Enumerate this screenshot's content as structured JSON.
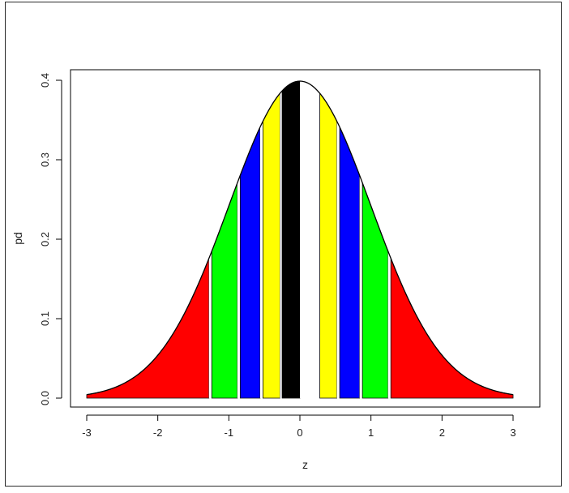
{
  "chart_data": {
    "type": "area",
    "title": "",
    "xlabel": "z",
    "ylabel": "pd",
    "xlim": [
      -3,
      3
    ],
    "ylim": [
      0,
      0.4
    ],
    "x_ticks": [
      -3,
      -2,
      -1,
      0,
      1,
      2,
      3
    ],
    "x_tick_labels": [
      "-3",
      "-2",
      "-1",
      "0",
      "1",
      "2",
      "3"
    ],
    "y_ticks": [
      0.0,
      0.1,
      0.2,
      0.3,
      0.4
    ],
    "y_tick_labels": [
      "0.0",
      "0.1",
      "0.2",
      "0.3",
      "0.4"
    ],
    "curve": "standard normal density",
    "bands": [
      {
        "from": -3.0,
        "to": -1.28,
        "color": "#ff0000"
      },
      {
        "from": -1.28,
        "to": -1.24,
        "color": "#ffffff"
      },
      {
        "from": -1.24,
        "to": -0.88,
        "color": "#00ff00"
      },
      {
        "from": -0.88,
        "to": -0.84,
        "color": "#ffffff"
      },
      {
        "from": -0.84,
        "to": -0.56,
        "color": "#0000ff"
      },
      {
        "from": -0.56,
        "to": -0.52,
        "color": "#ffffff"
      },
      {
        "from": -0.52,
        "to": -0.28,
        "color": "#ffff00"
      },
      {
        "from": -0.28,
        "to": -0.25,
        "color": "#ffffff"
      },
      {
        "from": -0.25,
        "to": 0.0,
        "color": "#000000"
      },
      {
        "from": 0.0,
        "to": 0.25,
        "color": "#ffffff"
      },
      {
        "from": 0.25,
        "to": 0.28,
        "color": "#ffffff"
      },
      {
        "from": 0.28,
        "to": 0.52,
        "color": "#ffff00"
      },
      {
        "from": 0.52,
        "to": 0.56,
        "color": "#ffffff"
      },
      {
        "from": 0.56,
        "to": 0.84,
        "color": "#0000ff"
      },
      {
        "from": 0.84,
        "to": 0.88,
        "color": "#ffffff"
      },
      {
        "from": 0.88,
        "to": 1.24,
        "color": "#00ff00"
      },
      {
        "from": 1.24,
        "to": 1.28,
        "color": "#ffffff"
      },
      {
        "from": 1.28,
        "to": 3.0,
        "color": "#ff0000"
      }
    ],
    "grid": false,
    "legend": "none"
  }
}
